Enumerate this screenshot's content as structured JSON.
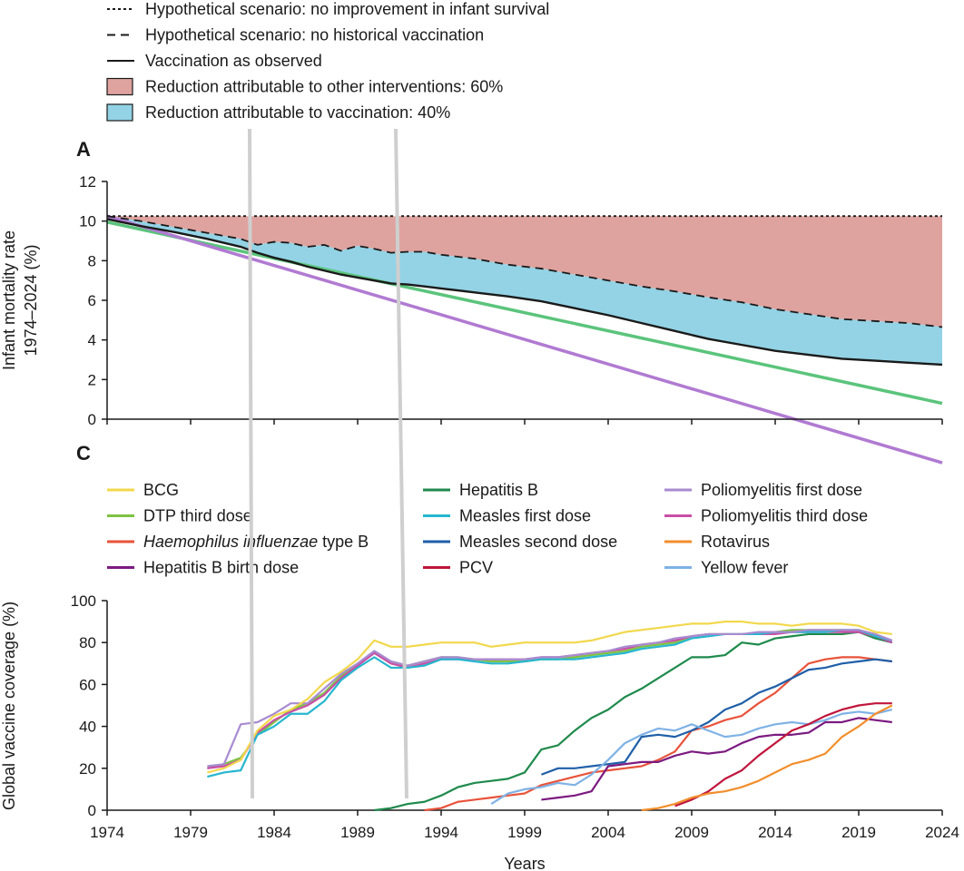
{
  "top_legend": [
    {
      "label": "Hypothetical scenario: no improvement in infant survival",
      "style": "dotted",
      "color": "#1a1a1a"
    },
    {
      "label": "Hypothetical scenario: no historical vaccination",
      "style": "dashed",
      "color": "#1a1a1a"
    },
    {
      "label": "Vaccination as observed",
      "style": "solid",
      "color": "#1a1a1a"
    },
    {
      "label": "Reduction attributable to other interventions: 60%",
      "style": "box",
      "color": "#dea39f"
    },
    {
      "label": "Reduction attributable to vaccination: 40%",
      "style": "box",
      "color": "#93d3e5"
    }
  ],
  "vaccine_legend": [
    {
      "label": "BCG",
      "color": "#f2d84c"
    },
    {
      "label": "DTP third dose",
      "color": "#7ec242"
    },
    {
      "label": "Haemophilus influenzae type B",
      "italic": "Haemophilus influenzae",
      "rest": " type B",
      "color": "#e8533a"
    },
    {
      "label": "Hepatitis B birth dose",
      "color": "#7b1a80"
    },
    {
      "label": "Hepatitis B",
      "color": "#1f8a4c"
    },
    {
      "label": "Measles first  dose",
      "color": "#26b6cf"
    },
    {
      "label": "Measles second dose",
      "color": "#1f5fa8"
    },
    {
      "label": "PCV",
      "color": "#c0163c"
    },
    {
      "label": "Poliomyelitis first dose",
      "color": "#a88bd0"
    },
    {
      "label": "Poliomyelitis third dose",
      "color": "#c94fa6"
    },
    {
      "label": "Rotavirus",
      "color": "#f28e2b"
    },
    {
      "label": "Yellow fever",
      "color": "#7fb2e5"
    }
  ],
  "chart_data": [
    {
      "type": "area",
      "panel": "A",
      "ylabel_line1": "Infant mortality rate",
      "ylabel_line2": "1974–2024 (%)",
      "xlim": [
        1974,
        2024
      ],
      "ylim": [
        0,
        12
      ],
      "yticks": [
        0,
        2,
        4,
        6,
        8,
        10,
        12
      ],
      "no_improvement": 10.25,
      "x": [
        1974,
        1976,
        1978,
        1980,
        1982,
        1983,
        1984,
        1985,
        1986,
        1987,
        1988,
        1989,
        1990,
        1991,
        1992,
        1993,
        1994,
        1996,
        1998,
        2000,
        2002,
        2004,
        2006,
        2008,
        2010,
        2012,
        2014,
        2016,
        2018,
        2020,
        2022,
        2024
      ],
      "no_vaccination": [
        10.25,
        10.0,
        9.7,
        9.4,
        9.1,
        8.8,
        8.95,
        8.9,
        8.7,
        8.8,
        8.5,
        8.75,
        8.6,
        8.4,
        8.45,
        8.45,
        8.3,
        8.1,
        7.8,
        7.6,
        7.3,
        7.0,
        6.7,
        6.45,
        6.15,
        5.9,
        5.55,
        5.3,
        5.05,
        4.95,
        4.85,
        4.65
      ],
      "observed": [
        10.1,
        9.75,
        9.45,
        9.1,
        8.7,
        8.4,
        8.15,
        7.95,
        7.7,
        7.5,
        7.3,
        7.15,
        7.0,
        6.85,
        6.8,
        6.7,
        6.6,
        6.4,
        6.2,
        5.95,
        5.6,
        5.25,
        4.85,
        4.45,
        4.05,
        3.75,
        3.45,
        3.25,
        3.05,
        2.95,
        2.85,
        2.75
      ],
      "green_line": [
        [
          1974,
          9.95
        ],
        [
          2024,
          0.8
        ]
      ],
      "purple_line": [
        [
          1974,
          10.25
        ],
        [
          2024,
          -2.2
        ]
      ],
      "colors": {
        "other_interventions": "#dea39f",
        "vaccination": "#93d3e5",
        "green": "#5bc47c",
        "purple": "#b07ad2"
      }
    },
    {
      "type": "line",
      "panel": "C",
      "xlabel": "Years",
      "ylabel": "Global vaccine coverage (%)",
      "xlim": [
        1974,
        2024
      ],
      "ylim": [
        0,
        100
      ],
      "xticks": [
        1974,
        1979,
        1984,
        1989,
        1994,
        1999,
        2004,
        2009,
        2014,
        2019,
        2024
      ],
      "yticks": [
        0,
        20,
        40,
        60,
        80,
        100
      ],
      "series": [
        {
          "name": "Hepatitis B",
          "color": "#1f8a4c",
          "x": [
            1990,
            1991,
            1992,
            1993,
            1994,
            1995,
            1996,
            1997,
            1998,
            1999,
            2000,
            2001,
            2002,
            2003,
            2004,
            2005,
            2006,
            2007,
            2008,
            2009,
            2010,
            2011,
            2012,
            2013,
            2014,
            2015,
            2016,
            2017,
            2018,
            2019,
            2020,
            2021
          ],
          "y": [
            0,
            1,
            3,
            4,
            7,
            11,
            13,
            14,
            15,
            18,
            29,
            31,
            38,
            44,
            48,
            54,
            58,
            63,
            68,
            73,
            73,
            74,
            80,
            79,
            82,
            83,
            84,
            84,
            84,
            85,
            82,
            80
          ]
        },
        {
          "name": "Haemophilus influenzae type B",
          "color": "#e8533a",
          "x": [
            1993,
            1994,
            1995,
            1996,
            1997,
            1998,
            1999,
            2000,
            2001,
            2002,
            2003,
            2004,
            2005,
            2006,
            2007,
            2008,
            2009,
            2010,
            2011,
            2012,
            2013,
            2014,
            2015,
            2016,
            2017,
            2018,
            2019,
            2020,
            2021
          ],
          "y": [
            0,
            1,
            4,
            5,
            6,
            7,
            8,
            12,
            14,
            16,
            18,
            19,
            20,
            21,
            24,
            28,
            38,
            40,
            43,
            45,
            51,
            56,
            63,
            70,
            72,
            73,
            73,
            72,
            71
          ]
        },
        {
          "name": "Measles second dose",
          "color": "#1f5fa8",
          "x": [
            2000,
            2001,
            2002,
            2003,
            2004,
            2005,
            2006,
            2007,
            2008,
            2009,
            2010,
            2011,
            2012,
            2013,
            2014,
            2015,
            2016,
            2017,
            2018,
            2019,
            2020,
            2021
          ],
          "y": [
            17,
            20,
            20,
            21,
            22,
            23,
            35,
            36,
            35,
            38,
            42,
            48,
            51,
            56,
            59,
            63,
            67,
            68,
            70,
            71,
            72,
            71
          ]
        },
        {
          "name": "Yellow fever",
          "color": "#7fb2e5",
          "x": [
            1997,
            1998,
            1999,
            2000,
            2001,
            2002,
            2003,
            2004,
            2005,
            2006,
            2007,
            2008,
            2009,
            2010,
            2011,
            2012,
            2013,
            2014,
            2015,
            2016,
            2017,
            2018,
            2019,
            2020,
            2021
          ],
          "y": [
            3,
            8,
            10,
            11,
            13,
            12,
            17,
            24,
            32,
            36,
            39,
            38,
            41,
            38,
            35,
            36,
            39,
            41,
            42,
            41,
            43,
            46,
            47,
            46,
            48
          ]
        },
        {
          "name": "Hepatitis B birth dose",
          "color": "#7b1a80",
          "x": [
            2000,
            2001,
            2002,
            2003,
            2004,
            2005,
            2006,
            2007,
            2008,
            2009,
            2010,
            2011,
            2012,
            2013,
            2014,
            2015,
            2016,
            2017,
            2018,
            2019,
            2020,
            2021
          ],
          "y": [
            5,
            6,
            7,
            9,
            21,
            22,
            23,
            23,
            26,
            28,
            27,
            28,
            32,
            35,
            36,
            36,
            37,
            42,
            42,
            44,
            43,
            42
          ]
        },
        {
          "name": "PCV",
          "color": "#c0163c",
          "x": [
            2008,
            2009,
            2010,
            2011,
            2012,
            2013,
            2014,
            2015,
            2016,
            2017,
            2018,
            2019,
            2020,
            2021
          ],
          "y": [
            2,
            5,
            9,
            15,
            19,
            26,
            32,
            38,
            41,
            45,
            48,
            50,
            51,
            51
          ]
        },
        {
          "name": "Rotavirus",
          "color": "#f28e2b",
          "x": [
            2006,
            2007,
            2008,
            2009,
            2010,
            2011,
            2012,
            2013,
            2014,
            2015,
            2016,
            2017,
            2018,
            2019,
            2020,
            2021
          ],
          "y": [
            0,
            1,
            3,
            6,
            8,
            9,
            11,
            14,
            18,
            22,
            24,
            27,
            35,
            40,
            46,
            50
          ]
        },
        {
          "name": "DTP third dose",
          "color": "#7ec242",
          "x": [
            1980,
            1981,
            1982,
            1983,
            1984,
            1985,
            1986,
            1987,
            1988,
            1989,
            1990,
            1991,
            1992,
            1993,
            1994,
            1995,
            1996,
            1997,
            1998,
            1999,
            2000,
            2001,
            2002,
            2003,
            2004,
            2005,
            2006,
            2007,
            2008,
            2009,
            2010,
            2011,
            2012,
            2013,
            2014,
            2015,
            2016,
            2017,
            2018,
            2019,
            2020,
            2021
          ],
          "y": [
            20,
            22,
            25,
            36,
            42,
            48,
            51,
            56,
            64,
            70,
            75,
            70,
            69,
            71,
            73,
            73,
            72,
            71,
            71,
            71,
            72,
            72,
            73,
            74,
            75,
            76,
            78,
            79,
            80,
            83,
            84,
            84,
            84,
            84,
            85,
            86,
            86,
            86,
            86,
            85,
            83,
            81
          ]
        },
        {
          "name": "Poliomyelitis third dose",
          "color": "#c94fa6",
          "x": [
            1980,
            1981,
            1982,
            1983,
            1984,
            1985,
            1986,
            1987,
            1988,
            1989,
            1990,
            1991,
            1992,
            1993,
            1994,
            1995,
            1996,
            1997,
            1998,
            1999,
            2000,
            2001,
            2002,
            2003,
            2004,
            2005,
            2006,
            2007,
            2008,
            2009,
            2010,
            2011,
            2012,
            2013,
            2014,
            2015,
            2016,
            2017,
            2018,
            2019,
            2020,
            2021
          ],
          "y": [
            20,
            21,
            24,
            37,
            43,
            47,
            50,
            55,
            63,
            69,
            75,
            70,
            68,
            70,
            72,
            72,
            72,
            72,
            72,
            72,
            73,
            73,
            74,
            75,
            76,
            77,
            79,
            80,
            81,
            83,
            84,
            84,
            84,
            84,
            84,
            85,
            85,
            85,
            85,
            85,
            83,
            80
          ]
        },
        {
          "name": "Measles first  dose",
          "color": "#26b6cf",
          "x": [
            1980,
            1981,
            1982,
            1983,
            1984,
            1985,
            1986,
            1987,
            1988,
            1989,
            1990,
            1991,
            1992,
            1993,
            1994,
            1995,
            1996,
            1997,
            1998,
            1999,
            2000,
            2001,
            2002,
            2003,
            2004,
            2005,
            2006,
            2007,
            2008,
            2009,
            2010,
            2011,
            2012,
            2013,
            2014,
            2015,
            2016,
            2017,
            2018,
            2019,
            2020,
            2021
          ],
          "y": [
            16,
            18,
            19,
            36,
            40,
            46,
            46,
            52,
            62,
            68,
            73,
            68,
            68,
            69,
            72,
            72,
            71,
            70,
            70,
            71,
            72,
            72,
            72,
            73,
            74,
            75,
            77,
            78,
            79,
            82,
            83,
            84,
            84,
            84,
            85,
            85,
            85,
            85,
            86,
            86,
            83,
            81
          ]
        },
        {
          "name": "Poliomyelitis first dose",
          "color": "#a88bd0",
          "x": [
            1980,
            1981,
            1982,
            1983,
            1984,
            1985,
            1986,
            1987,
            1988,
            1989,
            1990,
            1991,
            1992,
            1993,
            1994,
            1995,
            1996,
            1997,
            1998,
            1999,
            2000,
            2001,
            2002,
            2003,
            2004,
            2005,
            2006,
            2007,
            2008,
            2009,
            2010,
            2011,
            2012,
            2013,
            2014,
            2015,
            2016,
            2017,
            2018,
            2019,
            2020,
            2021
          ],
          "y": [
            21,
            22,
            41,
            42,
            46,
            51,
            51,
            58,
            65,
            70,
            76,
            71,
            69,
            71,
            73,
            73,
            72,
            72,
            72,
            72,
            73,
            73,
            74,
            75,
            76,
            78,
            79,
            80,
            82,
            83,
            84,
            84,
            84,
            85,
            85,
            85,
            86,
            86,
            86,
            86,
            84,
            81
          ]
        },
        {
          "name": "BCG",
          "color": "#f2d84c",
          "x": [
            1980,
            1981,
            1982,
            1983,
            1984,
            1985,
            1986,
            1987,
            1988,
            1989,
            1990,
            1991,
            1992,
            1993,
            1994,
            1995,
            1996,
            1997,
            1998,
            1999,
            2000,
            2001,
            2002,
            2003,
            2004,
            2005,
            2006,
            2007,
            2008,
            2009,
            2010,
            2011,
            2012,
            2013,
            2014,
            2015,
            2016,
            2017,
            2018,
            2019,
            2020,
            2021
          ],
          "y": [
            18,
            20,
            24,
            38,
            45,
            48,
            53,
            61,
            66,
            72,
            81,
            78,
            78,
            79,
            80,
            80,
            80,
            78,
            79,
            80,
            80,
            80,
            80,
            81,
            83,
            85,
            86,
            87,
            88,
            89,
            89,
            90,
            90,
            89,
            89,
            88,
            89,
            89,
            89,
            88,
            85,
            84
          ]
        }
      ]
    }
  ]
}
